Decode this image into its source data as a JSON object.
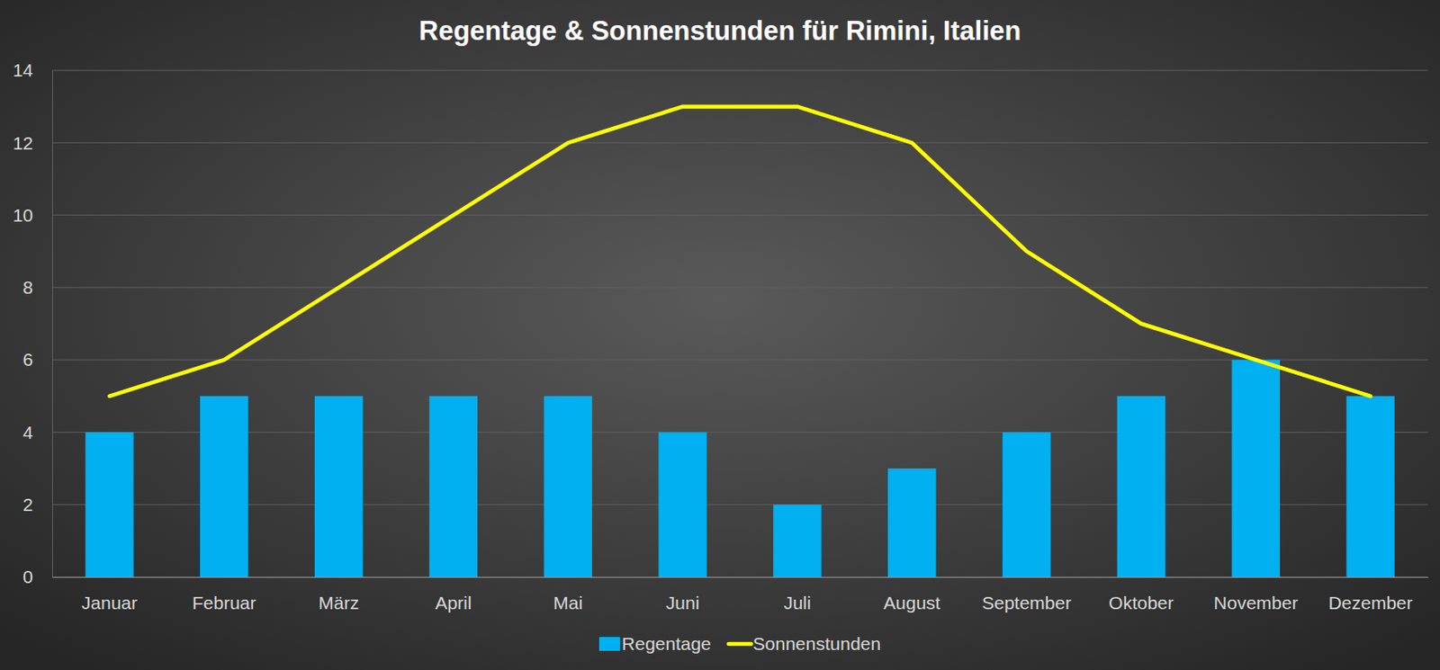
{
  "chart_data": {
    "type": "bar",
    "title": "Regentage & Sonnenstunden für Rimini, Italien",
    "categories": [
      "Januar",
      "Februar",
      "März",
      "April",
      "Mai",
      "Juni",
      "Juli",
      "August",
      "September",
      "Oktober",
      "November",
      "Dezember"
    ],
    "series": [
      {
        "name": "Regentage",
        "type": "bar",
        "color": "#00b0f0",
        "values": [
          4,
          5,
          5,
          5,
          5,
          4,
          2,
          3,
          4,
          5,
          6,
          5
        ]
      },
      {
        "name": "Sonnenstunden",
        "type": "line",
        "color": "#ffff00",
        "values": [
          5,
          6,
          8,
          10,
          12,
          13,
          13,
          12,
          9,
          7,
          6,
          5
        ]
      }
    ],
    "ylim": [
      0,
      14
    ],
    "yticks": [
      0,
      2,
      4,
      6,
      8,
      10,
      12,
      14
    ],
    "grid": true,
    "legend": "bottom"
  }
}
